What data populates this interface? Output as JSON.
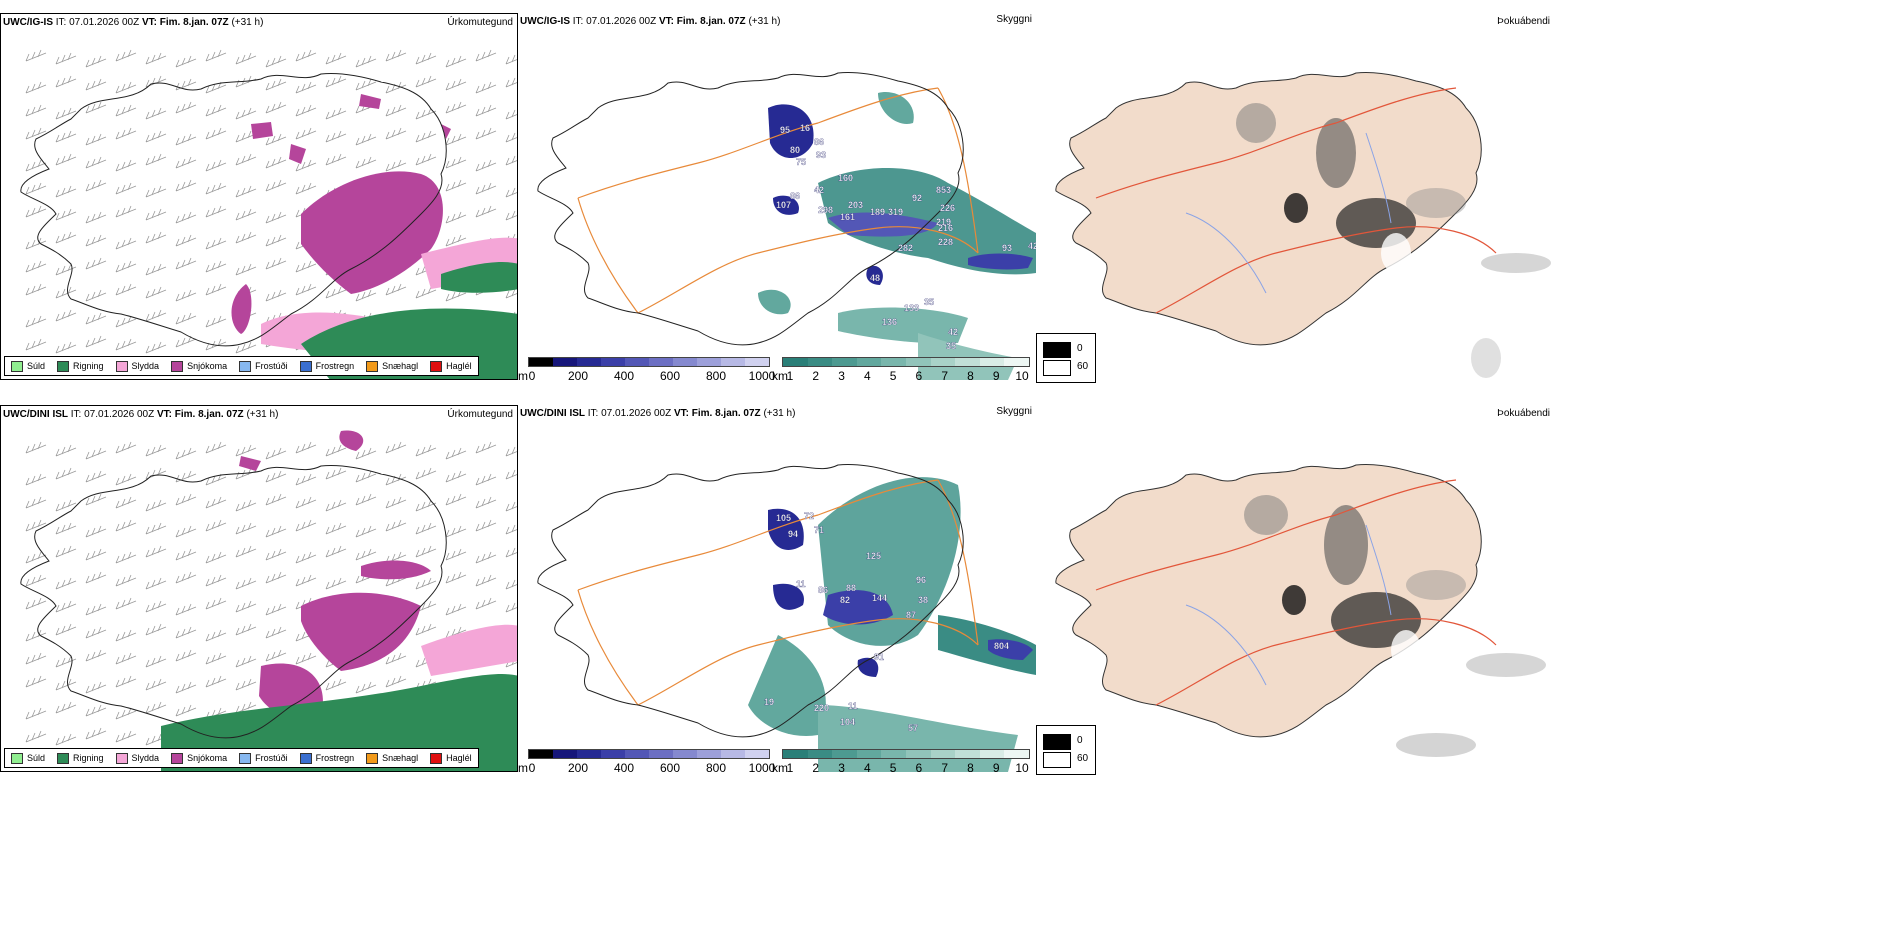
{
  "rows": [
    {
      "model": "UWC/IG-IS",
      "it_label": "IT:",
      "it_value": "07.01.2026 00Z",
      "vt_label": "VT:",
      "vt_value": "Fim. 8.jan. 07Z",
      "lead": "(+31 h)",
      "precip_title": "Úrkomutegund",
      "vis_title": "Skyggni",
      "fog_title": "Þokuábendi",
      "numbers": [
        "95",
        "16",
        "80",
        "86",
        "93",
        "75",
        "160",
        "42",
        "86",
        "107",
        "298",
        "203",
        "161",
        "189",
        "319",
        "92",
        "853",
        "226",
        "219",
        "216",
        "282",
        "228",
        "93",
        "42",
        "48",
        "35",
        "133",
        "136",
        "42",
        "35"
      ]
    },
    {
      "model": "UWC/DINI ISL",
      "it_label": "IT:",
      "it_value": "07.01.2026 00Z",
      "vt_label": "VT:",
      "vt_value": "Fim. 8.jan. 07Z",
      "lead": "(+31 h)",
      "precip_title": "Úrkomutegund",
      "vis_title": "Skyggni",
      "fog_title": "Þokuábendi",
      "numbers": [
        "105",
        "72",
        "94",
        "71",
        "11",
        "125",
        "86",
        "88",
        "82",
        "144",
        "96",
        "38",
        "87",
        "91",
        "804",
        "220",
        "11",
        "19",
        "104",
        "57"
      ]
    }
  ],
  "precip_legend": [
    {
      "label": "Súld",
      "color": "#90ee90"
    },
    {
      "label": "Rigning",
      "color": "#2e8b57"
    },
    {
      "label": "Slydda",
      "color": "#f4a6d7"
    },
    {
      "label": "Snjókoma",
      "color": "#b5459b"
    },
    {
      "label": "Frostúði",
      "color": "#87b8f0"
    },
    {
      "label": "Frostregn",
      "color": "#3a6fd0"
    },
    {
      "label": "Snæhagl",
      "color": "#f29a1a"
    },
    {
      "label": "Haglél",
      "color": "#e01010"
    }
  ],
  "ceiling_bar": {
    "unit": "m",
    "ticks": [
      "0",
      "200",
      "400",
      "600",
      "800",
      "1000"
    ],
    "colors": [
      "#000000",
      "#16167a",
      "#262a93",
      "#3b3fa8",
      "#5357b6",
      "#6c6fc3",
      "#8589cf",
      "#9da0da",
      "#b7b9e5",
      "#d0d1ef"
    ]
  },
  "visibility_bar": {
    "unit": "km",
    "ticks": [
      "1",
      "2",
      "3",
      "4",
      "5",
      "6",
      "7",
      "8",
      "9",
      "10"
    ],
    "colors": [
      "#2a7f78",
      "#3a8c84",
      "#4d9a91",
      "#62a89e",
      "#79b6ac",
      "#91c4ba",
      "#a9d2c8",
      "#c1dfd7",
      "#d9ece6",
      "#eef7f4"
    ]
  },
  "cloud_legend": [
    {
      "label": "0",
      "color": "#000000"
    },
    {
      "label": "60",
      "color": "#ffffff"
    }
  ]
}
